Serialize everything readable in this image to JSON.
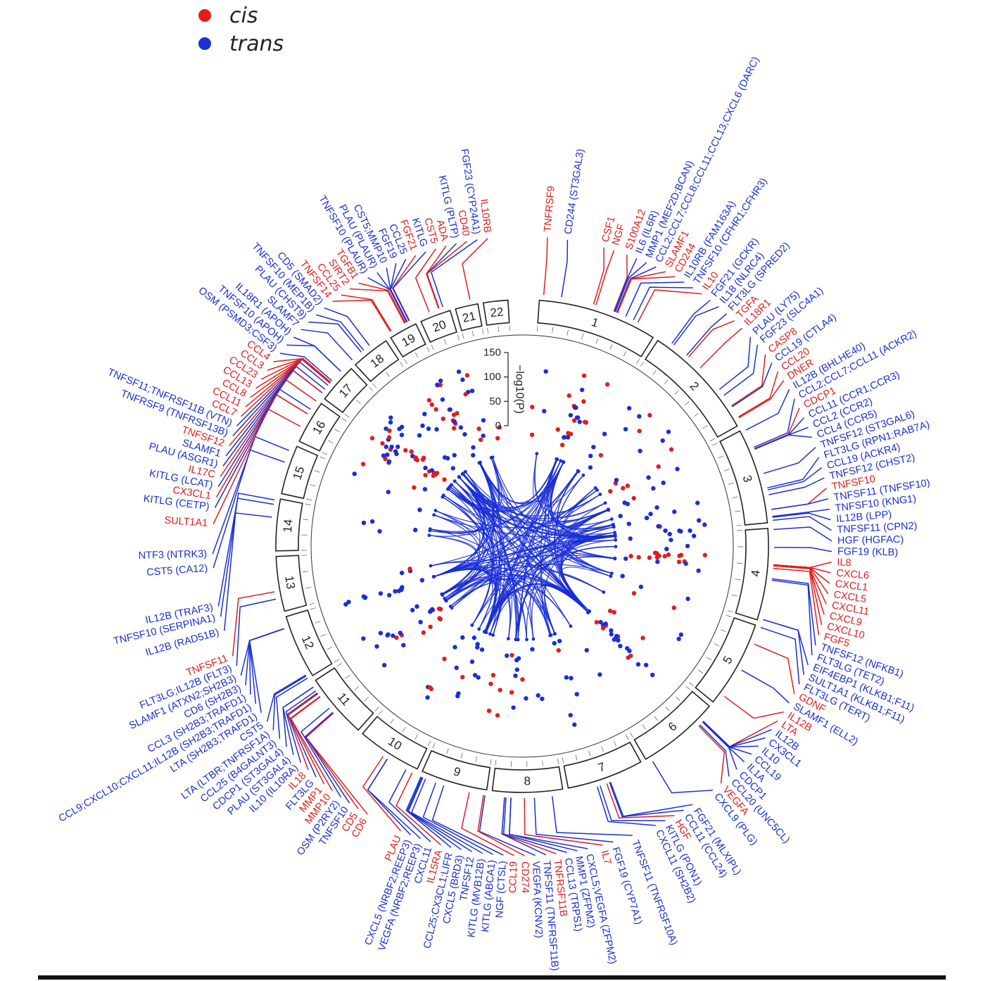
{
  "legend": {
    "cis": {
      "label": "cis",
      "color": "#e11d1d"
    },
    "trans": {
      "label": "trans",
      "color": "#1a2fd6"
    }
  },
  "axis": {
    "label": "−log10(P)",
    "ticks": [
      "0",
      "50",
      "100",
      "150"
    ]
  },
  "chromosomes": [
    {
      "name": "1",
      "size": 248
    },
    {
      "name": "2",
      "size": 242
    },
    {
      "name": "3",
      "size": 198
    },
    {
      "name": "4",
      "size": 190
    },
    {
      "name": "5",
      "size": 181
    },
    {
      "name": "6",
      "size": 171
    },
    {
      "name": "7",
      "size": 159
    },
    {
      "name": "8",
      "size": 145
    },
    {
      "name": "9",
      "size": 138
    },
    {
      "name": "10",
      "size": 134
    },
    {
      "name": "11",
      "size": 135
    },
    {
      "name": "12",
      "size": 133
    },
    {
      "name": "13",
      "size": 114
    },
    {
      "name": "14",
      "size": 107
    },
    {
      "name": "15",
      "size": 102
    },
    {
      "name": "16",
      "size": 90
    },
    {
      "name": "17",
      "size": 83
    },
    {
      "name": "18",
      "size": 80
    },
    {
      "name": "19",
      "size": 59
    },
    {
      "name": "20",
      "size": 64
    },
    {
      "name": "21",
      "size": 47
    },
    {
      "name": "22",
      "size": 51
    }
  ],
  "genes": [
    {
      "label": "TNFRSF9",
      "type": "cis",
      "chr": "1",
      "pos": 8
    },
    {
      "label": "CD244 (ST3GAL3)",
      "type": "trans",
      "chr": "1",
      "pos": 44
    },
    {
      "label": "CSF1",
      "type": "cis",
      "chr": "1",
      "pos": 110
    },
    {
      "label": "NGF",
      "type": "cis",
      "chr": "1",
      "pos": 115
    },
    {
      "label": "S100A12",
      "type": "cis",
      "chr": "1",
      "pos": 153
    },
    {
      "label": "IL6 (IL6R)",
      "type": "trans",
      "chr": "1",
      "pos": 154
    },
    {
      "label": "MMP1 (MEF2D;BCAN)",
      "type": "trans",
      "chr": "1",
      "pos": 156
    },
    {
      "label": "CCL2;CCL7;CCL8;CCL11;CCL13;CXCL6 (DARC)",
      "type": "trans",
      "chr": "1",
      "pos": 159
    },
    {
      "label": "SLAMF1",
      "type": "cis",
      "chr": "1",
      "pos": 160
    },
    {
      "label": "CD244",
      "type": "cis",
      "chr": "1",
      "pos": 161
    },
    {
      "label": "IL10RB (FAM163A)",
      "type": "trans",
      "chr": "1",
      "pos": 179
    },
    {
      "label": "TNFSF10 (CFHR1;CFHR3)",
      "type": "trans",
      "chr": "1",
      "pos": 196
    },
    {
      "label": "IL10",
      "type": "cis",
      "chr": "1",
      "pos": 206
    },
    {
      "label": "FGF21 (GCKR)",
      "type": "trans",
      "chr": "2",
      "pos": 27
    },
    {
      "label": "IL18 (NLRC4)",
      "type": "trans",
      "chr": "2",
      "pos": 32
    },
    {
      "label": "FLT3LG (SPRED2)",
      "type": "trans",
      "chr": "2",
      "pos": 65
    },
    {
      "label": "TGFA",
      "type": "cis",
      "chr": "2",
      "pos": 70
    },
    {
      "label": "IL18R1",
      "type": "cis",
      "chr": "2",
      "pos": 102
    },
    {
      "label": "PLAU (LY75)",
      "type": "trans",
      "chr": "2",
      "pos": 160
    },
    {
      "label": "FGF23 (SLC4A1)",
      "type": "trans",
      "chr": "2",
      "pos": 175
    },
    {
      "label": "CASP8",
      "type": "cis",
      "chr": "2",
      "pos": 201
    },
    {
      "label": "CCL19 (CTLA4)",
      "type": "trans",
      "chr": "2",
      "pos": 203
    },
    {
      "label": "CCL20",
      "type": "cis",
      "chr": "2",
      "pos": 227
    },
    {
      "label": "DNER",
      "type": "cis",
      "chr": "2",
      "pos": 229
    },
    {
      "label": "IL12B (BHLHE40)",
      "type": "trans",
      "chr": "3",
      "pos": 4
    },
    {
      "label": "CCL2;CCL7;CCL11 (ACKR2)",
      "type": "trans",
      "chr": "3",
      "pos": 42
    },
    {
      "label": "CDCP1",
      "type": "cis",
      "chr": "3",
      "pos": 45
    },
    {
      "label": "CCL11 (CCR1;CCR3)",
      "type": "trans",
      "chr": "3",
      "pos": 46
    },
    {
      "label": "CCL2 (CCR2)",
      "type": "trans",
      "chr": "3",
      "pos": 46
    },
    {
      "label": "CCL4 (CCR5)",
      "type": "trans",
      "chr": "3",
      "pos": 46
    },
    {
      "label": "TNFSF12 (ST3GAL6)",
      "type": "trans",
      "chr": "3",
      "pos": 98
    },
    {
      "label": "FLT3LG (RPN1;RAB7A)",
      "type": "trans",
      "chr": "3",
      "pos": 128
    },
    {
      "label": "CCL19 (ACKR4)",
      "type": "trans",
      "chr": "3",
      "pos": 132
    },
    {
      "label": "TNFSF12 (CHST2)",
      "type": "trans",
      "chr": "3",
      "pos": 142
    },
    {
      "label": "TNFSF10",
      "type": "cis",
      "chr": "3",
      "pos": 172
    },
    {
      "label": "TNFSF11 (TNFSF10)",
      "type": "trans",
      "chr": "3",
      "pos": 172
    },
    {
      "label": "TNFSF10 (KNG1)",
      "type": "trans",
      "chr": "3",
      "pos": 186
    },
    {
      "label": "IL12B (LPP)",
      "type": "trans",
      "chr": "3",
      "pos": 188
    },
    {
      "label": "TNFSF11 (CPN2)",
      "type": "trans",
      "chr": "3",
      "pos": 194
    },
    {
      "label": "HGF (HGFAC)",
      "type": "trans",
      "chr": "4",
      "pos": 3
    },
    {
      "label": "FGF19 (KLB)",
      "type": "trans",
      "chr": "4",
      "pos": 39
    },
    {
      "label": "IL8",
      "type": "cis",
      "chr": "4",
      "pos": 74
    },
    {
      "label": "CXCL6",
      "type": "cis",
      "chr": "4",
      "pos": 74
    },
    {
      "label": "CXCL1",
      "type": "cis",
      "chr": "4",
      "pos": 74
    },
    {
      "label": "CXCL5",
      "type": "cis",
      "chr": "4",
      "pos": 74
    },
    {
      "label": "CXCL11",
      "type": "cis",
      "chr": "4",
      "pos": 76
    },
    {
      "label": "CXCL9",
      "type": "cis",
      "chr": "4",
      "pos": 76
    },
    {
      "label": "CXCL10",
      "type": "cis",
      "chr": "4",
      "pos": 76
    },
    {
      "label": "FGF5",
      "type": "cis",
      "chr": "4",
      "pos": 81
    },
    {
      "label": "TNFSF12 (NFKB1)",
      "type": "trans",
      "chr": "4",
      "pos": 102
    },
    {
      "label": "FLT3LG (TET2)",
      "type": "trans",
      "chr": "4",
      "pos": 105
    },
    {
      "label": "EIF4EBP1 (KLKB1;F11)",
      "type": "trans",
      "chr": "4",
      "pos": 186
    },
    {
      "label": "SULT1A1 (KLKB1;F11)",
      "type": "trans",
      "chr": "4",
      "pos": 186
    },
    {
      "label": "FLT3LG (TERT)",
      "type": "trans",
      "chr": "5",
      "pos": 1
    },
    {
      "label": "GDNF",
      "type": "cis",
      "chr": "5",
      "pos": 37
    },
    {
      "label": "SLAMF1 (ELL2)",
      "type": "trans",
      "chr": "5",
      "pos": 95
    },
    {
      "label": "IL12B",
      "type": "cis",
      "chr": "5",
      "pos": 158
    },
    {
      "label": "LTA",
      "type": "cis",
      "chr": "6",
      "pos": 31
    },
    {
      "label": "IL12B",
      "type": "trans",
      "chr": "6",
      "pos": 31
    },
    {
      "label": "CX3CL1",
      "type": "trans",
      "chr": "6",
      "pos": 32
    },
    {
      "label": "IL10",
      "type": "trans",
      "chr": "6",
      "pos": 32
    },
    {
      "label": "CCL19",
      "type": "trans",
      "chr": "6",
      "pos": 32
    },
    {
      "label": "IL1A",
      "type": "trans",
      "chr": "6",
      "pos": 33
    },
    {
      "label": "CDCP1",
      "type": "trans",
      "chr": "6",
      "pos": 33
    },
    {
      "label": "CCL20 (UNC5CL)",
      "type": "trans",
      "chr": "6",
      "pos": 41
    },
    {
      "label": "VEGFA",
      "type": "cis",
      "chr": "6",
      "pos": 44
    },
    {
      "label": "CXCL9 (PLG)",
      "type": "trans",
      "chr": "6",
      "pos": 161
    },
    {
      "label": "FGF21 (MLXIPL)",
      "type": "trans",
      "chr": "7",
      "pos": 73
    },
    {
      "label": "CCL11 (CCL24)",
      "type": "trans",
      "chr": "7",
      "pos": 75
    },
    {
      "label": "HGF",
      "type": "cis",
      "chr": "7",
      "pos": 81
    },
    {
      "label": "KITLG (PON1)",
      "type": "trans",
      "chr": "7",
      "pos": 95
    },
    {
      "label": "CXCL11 (SH2B2)",
      "type": "trans",
      "chr": "7",
      "pos": 101
    },
    {
      "label": "TNFSF11 (TNFRSF10A)",
      "type": "trans",
      "chr": "8",
      "pos": 23
    },
    {
      "label": "IL7",
      "type": "cis",
      "chr": "8",
      "pos": 79
    },
    {
      "label": "FGF19 (CYP7A1)",
      "type": "trans",
      "chr": "8",
      "pos": 59
    },
    {
      "label": "CXCL5;VEGFA (ZFPM2)",
      "type": "trans",
      "chr": "8",
      "pos": 106
    },
    {
      "label": "MMP1 (ZFPM2)",
      "type": "trans",
      "chr": "8",
      "pos": 106
    },
    {
      "label": "CCL13 (TRPS1)",
      "type": "trans",
      "chr": "8",
      "pos": 116
    },
    {
      "label": "TNFRSF11B",
      "type": "cis",
      "chr": "8",
      "pos": 119
    },
    {
      "label": "TNFSF11 (TNFRSF11B)",
      "type": "trans",
      "chr": "8",
      "pos": 119
    },
    {
      "label": "VEGFA (KCNV2)",
      "type": "trans",
      "chr": "9",
      "pos": 2
    },
    {
      "label": "CD274",
      "type": "cis",
      "chr": "9",
      "pos": 5
    },
    {
      "label": "CCL19",
      "type": "cis",
      "chr": "9",
      "pos": 34
    },
    {
      "label": "NGF (CTSL)",
      "type": "trans",
      "chr": "9",
      "pos": 87
    },
    {
      "label": "KITLG (ABCA1)",
      "type": "trans",
      "chr": "9",
      "pos": 104
    },
    {
      "label": "KITLG (MVB12B)",
      "type": "trans",
      "chr": "9",
      "pos": 126
    },
    {
      "label": "TNFSF12",
      "type": "trans",
      "chr": "9",
      "pos": 132
    },
    {
      "label": "CCL25;CX3CL1;LIFR",
      "type": "trans",
      "chr": "9",
      "pos": 136
    },
    {
      "label": "CXCL5 (BRD3)",
      "type": "trans",
      "chr": "9",
      "pos": 134
    },
    {
      "label": "IL15RA",
      "type": "cis",
      "chr": "10",
      "pos": 6
    },
    {
      "label": "CXCL11",
      "type": "trans",
      "chr": "10",
      "pos": 20
    },
    {
      "label": "VEGFA (NRBF2;REEP3)",
      "type": "trans",
      "chr": "10",
      "pos": 63
    },
    {
      "label": "CXCL5 (NRBF2;REEP3)",
      "type": "trans",
      "chr": "10",
      "pos": 63
    },
    {
      "label": "PLAU",
      "type": "cis",
      "chr": "10",
      "pos": 73
    },
    {
      "label": "CD6",
      "type": "cis",
      "chr": "11",
      "pos": 60
    },
    {
      "label": "CD5",
      "type": "cis",
      "chr": "11",
      "pos": 61
    },
    {
      "label": "TNFSF10",
      "type": "trans",
      "chr": "11",
      "pos": 62
    },
    {
      "label": "OSM (P2RY2)",
      "type": "trans",
      "chr": "11",
      "pos": 73
    },
    {
      "label": "MMP10",
      "type": "cis",
      "chr": "11",
      "pos": 102
    },
    {
      "label": "MMP1",
      "type": "cis",
      "chr": "11",
      "pos": 103
    },
    {
      "label": "FLT3LG",
      "type": "trans",
      "chr": "11",
      "pos": 110
    },
    {
      "label": "IL18",
      "type": "cis",
      "chr": "11",
      "pos": 112
    },
    {
      "label": "IL10 (IL10RA)",
      "type": "trans",
      "chr": "11",
      "pos": 117
    },
    {
      "label": "PLAU (ST3GAL4)",
      "type": "trans",
      "chr": "11",
      "pos": 126
    },
    {
      "label": "CDCP1 (ST3GAL4)",
      "type": "trans",
      "chr": "11",
      "pos": 126
    },
    {
      "label": "CCL25 (B4GALNT3)",
      "type": "trans",
      "chr": "12",
      "pos": 1
    },
    {
      "label": "LTA (LTBR;TNFRSF1A)",
      "type": "trans",
      "chr": "12",
      "pos": 6
    },
    {
      "label": "CST5",
      "type": "trans",
      "chr": "12",
      "pos": 8
    },
    {
      "label": "LTA (SH2B3;TRAFD1)",
      "type": "trans",
      "chr": "12",
      "pos": 111
    },
    {
      "label": "CCL9;CXCL10;CXCL11;IL12B (SH2B3;TRAFD1)",
      "type": "trans",
      "chr": "12",
      "pos": 111
    },
    {
      "label": "CCL3 (SH2B3;TRAFD1)",
      "type": "trans",
      "chr": "12",
      "pos": 111
    },
    {
      "label": "CD6 (SH2B3)",
      "type": "trans",
      "chr": "12",
      "pos": 111
    },
    {
      "label": "SLAMF1 (ATXN2;SH2B3)",
      "type": "trans",
      "chr": "12",
      "pos": 111
    },
    {
      "label": "FLT3LG;IL12B (FLT3)",
      "type": "trans",
      "chr": "13",
      "pos": 28
    },
    {
      "label": "TNFSF11",
      "type": "cis",
      "chr": "13",
      "pos": 43
    },
    {
      "label": "IL12B (RAD51B)",
      "type": "trans",
      "chr": "14",
      "pos": 68
    },
    {
      "label": "TNFSF10 (SERPINA1)",
      "type": "trans",
      "chr": "14",
      "pos": 94
    },
    {
      "label": "IL12B (TRAF3)",
      "type": "trans",
      "chr": "14",
      "pos": 103
    },
    {
      "label": "CST5 (CA12)",
      "type": "trans",
      "chr": "15",
      "pos": 63
    },
    {
      "label": "NTF3 (NTRK3)",
      "type": "trans",
      "chr": "15",
      "pos": 88
    },
    {
      "label": "SULT1A1",
      "type": "cis",
      "chr": "16",
      "pos": 28
    },
    {
      "label": "KITLG (CETP)",
      "type": "trans",
      "chr": "16",
      "pos": 57
    },
    {
      "label": "CX3CL1",
      "type": "cis",
      "chr": "16",
      "pos": 57
    },
    {
      "label": "KITLG (LCAT)",
      "type": "trans",
      "chr": "16",
      "pos": 68
    },
    {
      "label": "IL17C",
      "type": "cis",
      "chr": "16",
      "pos": 88
    },
    {
      "label": "PLAU (ASGR1)",
      "type": "trans",
      "chr": "17",
      "pos": 7
    },
    {
      "label": "SLAMF1",
      "type": "trans",
      "chr": "17",
      "pos": 7
    },
    {
      "label": "TNFSF12",
      "type": "cis",
      "chr": "17",
      "pos": 7
    },
    {
      "label": "TNFRSF9 (TNFRSF13B)",
      "type": "trans",
      "chr": "17",
      "pos": 16
    },
    {
      "label": "TNFSF11;TNFRSF11B (VTN)",
      "type": "trans",
      "chr": "17",
      "pos": 26
    },
    {
      "label": "CCL7",
      "type": "cis",
      "chr": "17",
      "pos": 32
    },
    {
      "label": "CCL11",
      "type": "cis",
      "chr": "17",
      "pos": 32
    },
    {
      "label": "CCL8",
      "type": "cis",
      "chr": "17",
      "pos": 32
    },
    {
      "label": "CCL13",
      "type": "cis",
      "chr": "17",
      "pos": 32
    },
    {
      "label": "CCL23",
      "type": "cis",
      "chr": "17",
      "pos": 34
    },
    {
      "label": "CCL3",
      "type": "cis",
      "chr": "17",
      "pos": 34
    },
    {
      "label": "CCL4",
      "type": "cis",
      "chr": "17",
      "pos": 34
    },
    {
      "label": "OSM (PSMD3;CSF3)",
      "type": "trans",
      "chr": "17",
      "pos": 38
    },
    {
      "label": "TNFSF10 (APOH)",
      "type": "trans",
      "chr": "17",
      "pos": 64
    },
    {
      "label": "IL18R1 (APOH)",
      "type": "trans",
      "chr": "17",
      "pos": 64
    },
    {
      "label": "SLAMF7",
      "type": "trans",
      "chr": "18",
      "pos": 2
    },
    {
      "label": "PLAU (CHST9)",
      "type": "trans",
      "chr": "18",
      "pos": 26
    },
    {
      "label": "TNFSF10 (MEP1B)",
      "type": "trans",
      "chr": "18",
      "pos": 32
    },
    {
      "label": "CD5 (SMAD2)",
      "type": "trans",
      "chr": "18",
      "pos": 47
    },
    {
      "label": "TNFSF14",
      "type": "cis",
      "chr": "19",
      "pos": 6
    },
    {
      "label": "CCL25",
      "type": "cis",
      "chr": "19",
      "pos": 8
    },
    {
      "label": "SIRT2",
      "type": "cis",
      "chr": "19",
      "pos": 39
    },
    {
      "label": "TGFB1",
      "type": "cis",
      "chr": "19",
      "pos": 41
    },
    {
      "label": "TNFSF10 (PLAUR)",
      "type": "trans",
      "chr": "19",
      "pos": 44
    },
    {
      "label": "PLAU (PLAUR)",
      "type": "trans",
      "chr": "19",
      "pos": 44
    },
    {
      "label": "CST5;MMP10",
      "type": "trans",
      "chr": "19",
      "pos": 45
    },
    {
      "label": "FGF19",
      "type": "trans",
      "chr": "19",
      "pos": 45
    },
    {
      "label": "CCL25",
      "type": "trans",
      "chr": "19",
      "pos": 45
    },
    {
      "label": "FGF21",
      "type": "cis",
      "chr": "19",
      "pos": 49
    },
    {
      "label": "KITLG",
      "type": "trans",
      "chr": "19",
      "pos": 50
    },
    {
      "label": "CST5",
      "type": "cis",
      "chr": "20",
      "pos": 23
    },
    {
      "label": "ADA",
      "type": "cis",
      "chr": "20",
      "pos": 43
    },
    {
      "label": "KITLG (PLTP)",
      "type": "trans",
      "chr": "20",
      "pos": 44
    },
    {
      "label": "CD40",
      "type": "cis",
      "chr": "20",
      "pos": 44
    },
    {
      "label": "FGF23 (CYP24A1)",
      "type": "trans",
      "chr": "20",
      "pos": 52
    },
    {
      "label": "IL10RB",
      "type": "cis",
      "chr": "21",
      "pos": 33
    }
  ]
}
